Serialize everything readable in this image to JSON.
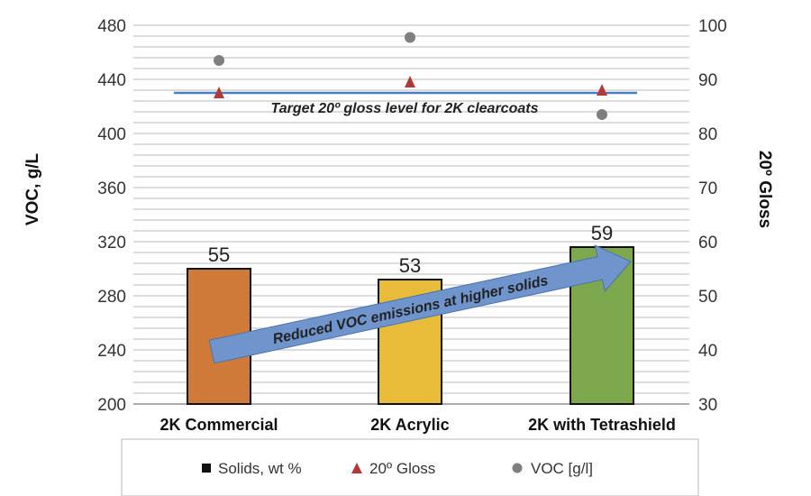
{
  "chart_data": {
    "type": "bar",
    "categories": [
      "2K Commercial",
      "2K Acrylic",
      "2K with Tetrashield"
    ],
    "series": [
      {
        "name": "Solids, wt %",
        "type": "bar",
        "axis": "right",
        "values": [
          55,
          53,
          59
        ],
        "colors": [
          "#D07A3A",
          "#E8BB38",
          "#7EA84E"
        ]
      },
      {
        "name": "20º Gloss",
        "type": "scatter",
        "marker": "triangle",
        "axis": "right",
        "values": [
          87.5,
          89.5,
          88
        ],
        "color": "#B03A3A"
      },
      {
        "name": "VOC [g/l]",
        "type": "scatter",
        "marker": "circle",
        "axis": "left",
        "values": [
          454,
          471,
          414
        ],
        "color": "#7F7F7F"
      }
    ],
    "ylabel": "VOC, g/L",
    "y2label": "20º Gloss",
    "ylim": [
      200,
      480
    ],
    "y2lim": [
      30,
      100
    ],
    "yticks": [
      200,
      240,
      280,
      320,
      360,
      400,
      440,
      480
    ],
    "y2ticks": [
      30,
      40,
      50,
      60,
      70,
      80,
      90,
      100
    ],
    "grid": true,
    "target_line": {
      "value": 87.5,
      "axis": "right",
      "label": "Target 20º gloss level for 2K clearcoats",
      "color": "#4A7EC4"
    },
    "annotation": "Reduced VOC emissions at higher solids",
    "legend": "bottom"
  }
}
